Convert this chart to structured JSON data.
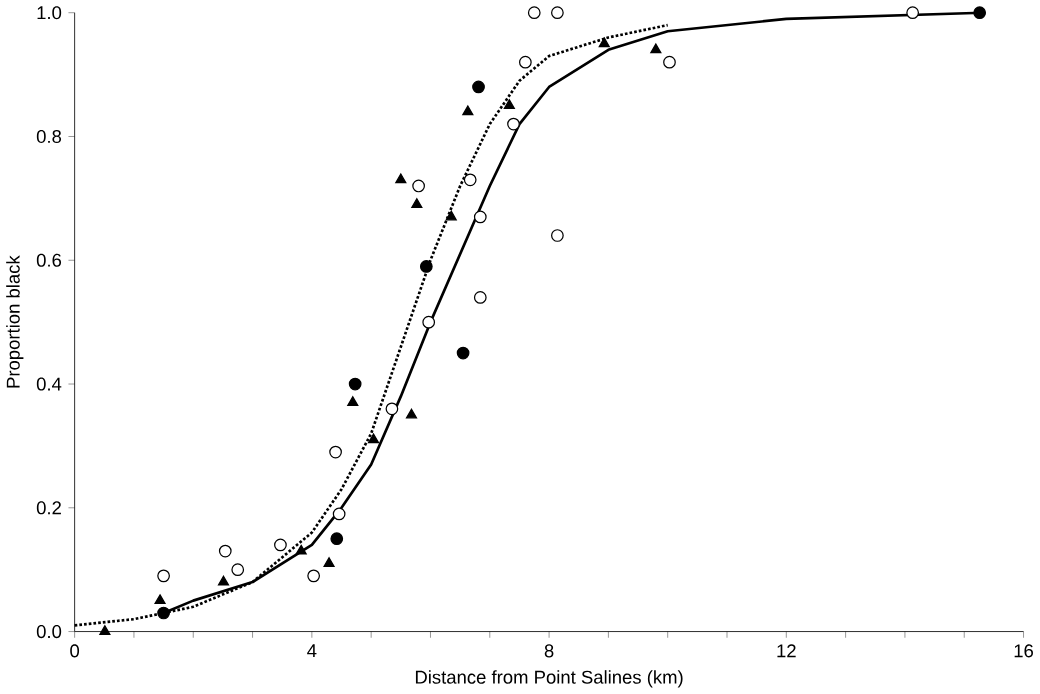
{
  "chart_data": {
    "type": "scatter",
    "xlabel": "Distance from Point Salines (km)",
    "ylabel": "Proportion black",
    "xlim": [
      0,
      16
    ],
    "ylim": [
      0,
      1
    ],
    "xticks": [
      0,
      {
        "value": 1,
        "label": null
      },
      {
        "value": 2,
        "label": null
      },
      {
        "value": 3,
        "label": null
      },
      4,
      {
        "value": 5,
        "label": null
      },
      {
        "value": 6,
        "label": null
      },
      {
        "value": 7,
        "label": null
      },
      8,
      {
        "value": 9,
        "label": null
      },
      {
        "value": 10,
        "label": null
      },
      {
        "value": 11,
        "label": null
      },
      12,
      {
        "value": 13,
        "label": null
      },
      {
        "value": 14,
        "label": null
      },
      {
        "value": 15,
        "label": null
      },
      16
    ],
    "yticks": [
      {
        "value": 0,
        "label": "0.0"
      },
      0.2,
      0.4,
      0.6,
      0.8,
      {
        "value": 1,
        "label": "1.0"
      }
    ],
    "grid": false,
    "series": [
      {
        "type": "line",
        "color": "#000000",
        "marker": "none",
        "line_style": "solid",
        "x": [
          1.5,
          2,
          3,
          4,
          4.5,
          5,
          5.5,
          6,
          6.5,
          7,
          7.5,
          8,
          9,
          10,
          12,
          15.3
        ],
        "values": [
          0.03,
          0.05,
          0.08,
          0.14,
          0.2,
          0.27,
          0.38,
          0.5,
          0.61,
          0.72,
          0.82,
          0.88,
          0.94,
          0.97,
          0.99,
          1.0
        ]
      },
      {
        "type": "line",
        "color": "#000000",
        "marker": "none",
        "line_style": "dotted",
        "x": [
          0,
          1,
          2,
          3,
          4,
          4.5,
          5,
          5.5,
          6,
          6.5,
          7,
          7.5,
          8,
          9,
          10
        ],
        "values": [
          0.01,
          0.02,
          0.04,
          0.08,
          0.16,
          0.23,
          0.32,
          0.46,
          0.6,
          0.72,
          0.82,
          0.89,
          0.93,
          0.96,
          0.98
        ]
      },
      {
        "color": "#ffffff",
        "marker": "circle",
        "x": [
          1.5,
          2.54,
          2.75,
          3.47,
          4.03,
          4.46,
          4.4,
          5.35,
          5.97,
          6.84,
          6.84,
          6.67,
          5.8,
          7.4,
          7.6,
          7.75,
          8.14,
          8.14,
          10.03,
          14.13
        ],
        "values": [
          0.09,
          0.13,
          0.1,
          0.14,
          0.09,
          0.19,
          0.29,
          0.36,
          0.5,
          0.54,
          0.67,
          0.73,
          0.72,
          0.82,
          0.92,
          1.0,
          1.0,
          0.64,
          0.92,
          1.0
        ]
      },
      {
        "color": "#000000",
        "marker": "circle",
        "x": [
          1.5,
          4.42,
          4.73,
          5.93,
          6.55,
          6.81,
          15.26
        ],
        "values": [
          0.03,
          0.15,
          0.4,
          0.59,
          0.45,
          0.88,
          1.0
        ]
      },
      {
        "color": "#000000",
        "marker": "triangle",
        "x": [
          0.51,
          1.44,
          2.51,
          3.82,
          4.29,
          4.69,
          5.04,
          5.68,
          5.5,
          5.77,
          6.35,
          6.63,
          7.33,
          8.93,
          9.8
        ],
        "values": [
          0.0,
          0.05,
          0.08,
          0.13,
          0.11,
          0.37,
          0.31,
          0.35,
          0.73,
          0.69,
          0.67,
          0.84,
          0.85,
          0.95,
          0.94
        ]
      }
    ]
  }
}
